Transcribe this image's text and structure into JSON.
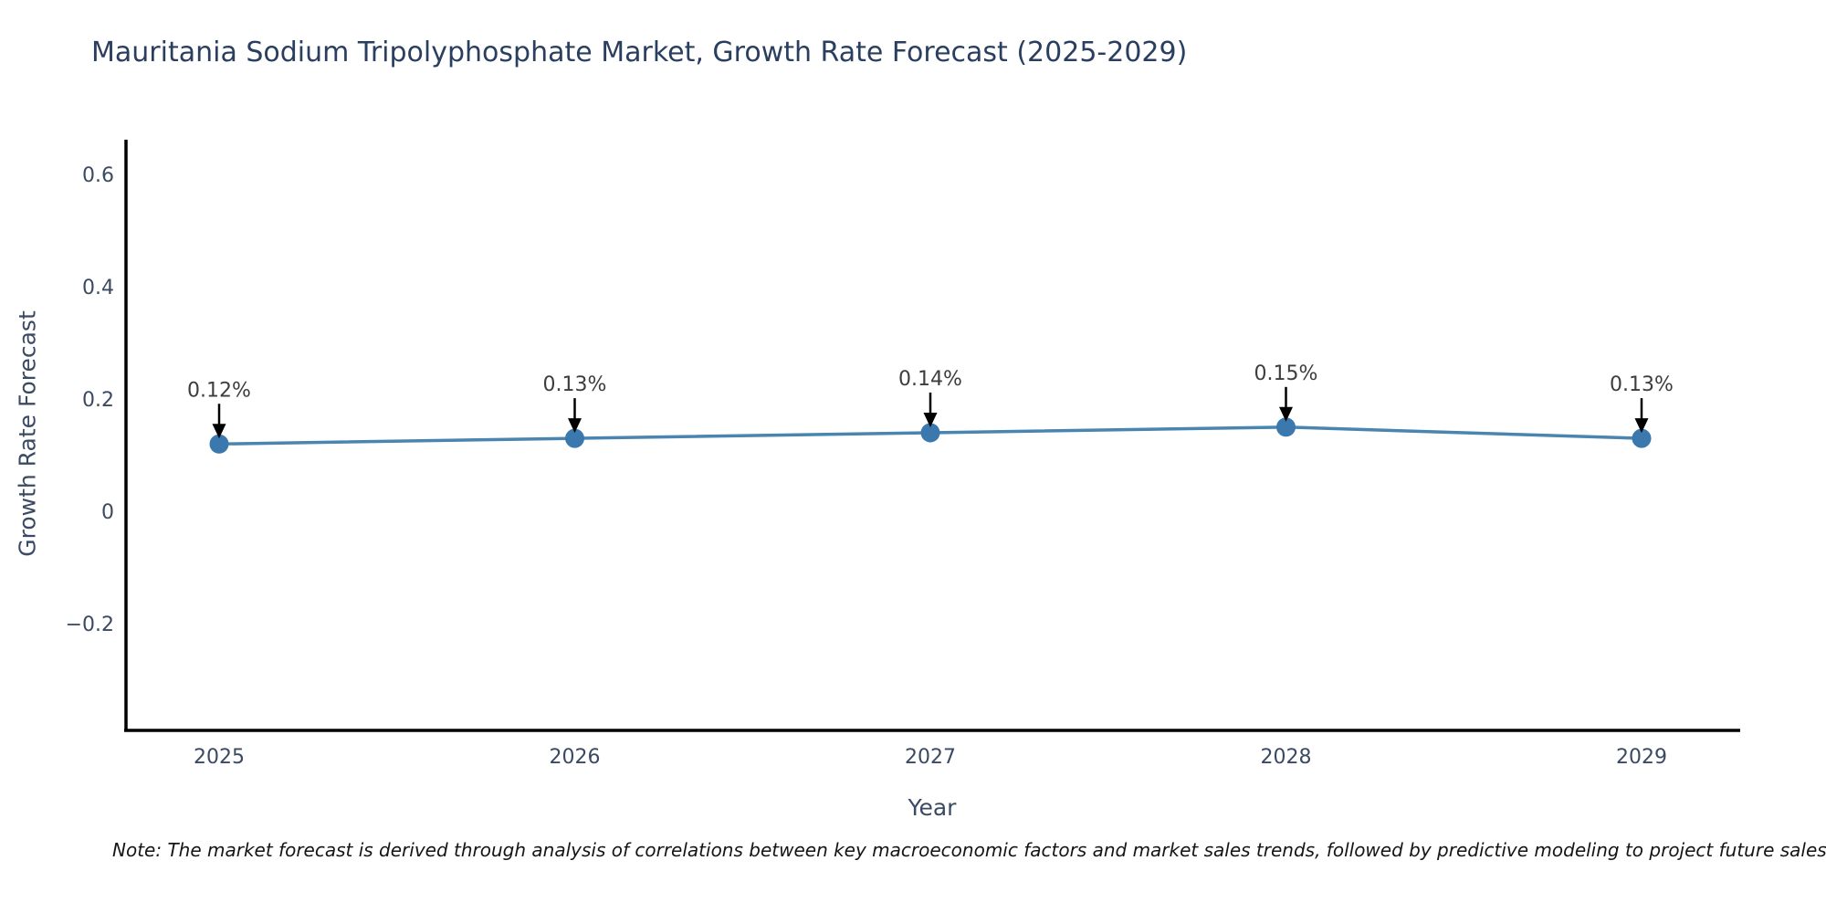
{
  "title": "Mauritania Sodium Tripolyphosphate Market, Growth Rate Forecast (2025-2029)",
  "note": "Note: The market forecast is derived through analysis of correlations between key macroeconomic factors and market sales trends, followed by predictive modeling to project future sales.",
  "chart_data": {
    "type": "line",
    "title": "Mauritania Sodium Tripolyphosphate Market, Growth Rate Forecast (2025-2029)",
    "xlabel": "Year",
    "ylabel": "Growth Rate Forecast",
    "categories": [
      "2025",
      "2026",
      "2027",
      "2028",
      "2029"
    ],
    "series": [
      {
        "name": "Growth Rate Forecast",
        "values": [
          0.12,
          0.13,
          0.14,
          0.15,
          0.13
        ],
        "data_labels": [
          "0.12%",
          "0.13%",
          "0.14%",
          "0.15%",
          "0.13%"
        ]
      }
    ],
    "yticks": [
      -0.2,
      0,
      0.2,
      0.4,
      0.6
    ],
    "ylim": [
      -0.39,
      0.6585
    ],
    "grid": false,
    "legend_position": "none",
    "annotations": "value labels with down arrows above each point",
    "colors": {
      "line": "#4a84b0",
      "marker": "#3a78ad",
      "axis": "#000000",
      "title_text": "#2a3f5f",
      "tick_text": "#3b4a63",
      "annotation_text": "#3d3d3d",
      "arrow": "#000000"
    }
  }
}
